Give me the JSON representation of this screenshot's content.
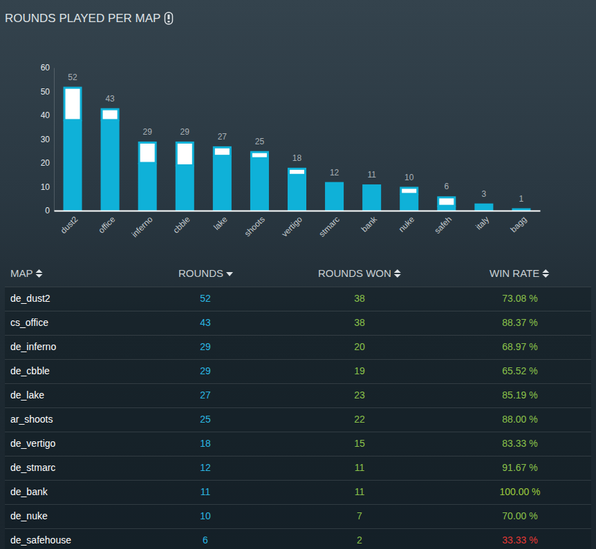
{
  "title": "ROUNDS PLAYED PER MAP",
  "chart_data": {
    "type": "bar",
    "stacked": true,
    "grid": false,
    "categories": [
      "dust2",
      "office",
      "inferno",
      "cbble",
      "lake",
      "shoots",
      "vertigo",
      "stmarc",
      "bank",
      "nuke",
      "safeh",
      "italy",
      "bagg"
    ],
    "series": [
      {
        "color": "#0fb1d8",
        "values": [
          38,
          38,
          20,
          19,
          23,
          22,
          15,
          11,
          11,
          7,
          2,
          3,
          1
        ]
      },
      {
        "color": "#ffffff",
        "values": [
          14,
          5,
          9,
          10,
          4,
          3,
          3,
          1,
          0,
          3,
          4,
          0,
          0
        ]
      }
    ],
    "totals": [
      52,
      43,
      29,
      29,
      27,
      25,
      18,
      12,
      11,
      10,
      6,
      3,
      1
    ],
    "ylim": [
      0,
      60
    ],
    "yticks": [
      0,
      10,
      20,
      30,
      40,
      50,
      60
    ]
  },
  "table": {
    "columns": [
      "MAP",
      "ROUNDS",
      "ROUNDS WON",
      "WIN RATE"
    ],
    "rows": [
      [
        "de_dust2",
        52,
        38,
        "73.08 %"
      ],
      [
        "cs_office",
        43,
        38,
        "88.37 %"
      ],
      [
        "de_inferno",
        29,
        20,
        "68.97 %"
      ],
      [
        "de_cbble",
        29,
        19,
        "65.52 %"
      ],
      [
        "de_lake",
        27,
        23,
        "85.19 %"
      ],
      [
        "ar_shoots",
        25,
        22,
        "88.00 %"
      ],
      [
        "de_vertigo",
        18,
        15,
        "83.33 %"
      ],
      [
        "de_stmarc",
        12,
        11,
        "91.67 %"
      ],
      [
        "de_bank",
        11,
        11,
        "100.00 %"
      ],
      [
        "de_nuke",
        10,
        7,
        "70.00 %"
      ],
      [
        "de_safehouse",
        6,
        2,
        "33.33 %"
      ]
    ]
  }
}
